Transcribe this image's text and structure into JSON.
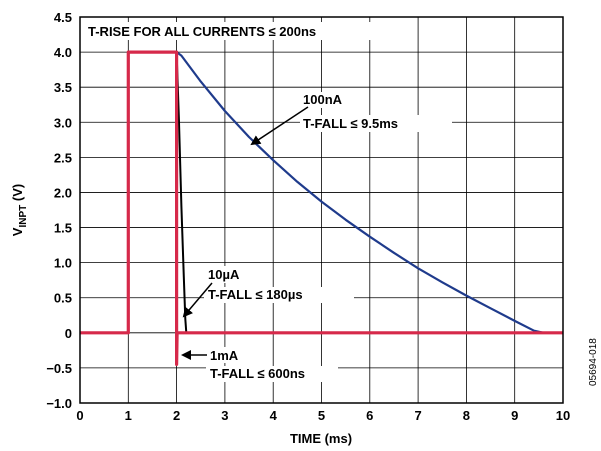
{
  "chart_data": {
    "type": "line",
    "title": "",
    "xlabel": "TIME (ms)",
    "ylabel_main": "V",
    "ylabel_sub": "INPT",
    "ylabel_unit": " (V)",
    "xlim": [
      0,
      10
    ],
    "ylim": [
      -1.0,
      4.5
    ],
    "grid": true,
    "x_ticks": [
      "0",
      "1",
      "2",
      "3",
      "4",
      "5",
      "6",
      "7",
      "8",
      "9",
      "10"
    ],
    "y_ticks": [
      "4.5",
      "4.0",
      "3.5",
      "3.0",
      "2.5",
      "2.0",
      "1.5",
      "1.0",
      "0.5",
      "0",
      "−0.5",
      "−1.0"
    ],
    "series": [
      {
        "name": "100nA",
        "color": "#1f3b8c",
        "points": [
          [
            0,
            0
          ],
          [
            1,
            0
          ],
          [
            1,
            4
          ],
          [
            2,
            4
          ],
          [
            2.1,
            3.95
          ],
          [
            2.5,
            3.58
          ],
          [
            3,
            3.16
          ],
          [
            3.5,
            2.79
          ],
          [
            4,
            2.46
          ],
          [
            4.5,
            2.15
          ],
          [
            5,
            1.87
          ],
          [
            5.5,
            1.61
          ],
          [
            6,
            1.37
          ],
          [
            6.5,
            1.14
          ],
          [
            7,
            0.92
          ],
          [
            7.5,
            0.72
          ],
          [
            8,
            0.53
          ],
          [
            8.5,
            0.35
          ],
          [
            9,
            0.17
          ],
          [
            9.4,
            0.03
          ],
          [
            9.6,
            0
          ],
          [
            10,
            0
          ]
        ]
      },
      {
        "name": "10µA",
        "color": "#000000",
        "points": [
          [
            0,
            0
          ],
          [
            1,
            0
          ],
          [
            1,
            4
          ],
          [
            2,
            4
          ],
          [
            2.05,
            3.0
          ],
          [
            2.1,
            1.8
          ],
          [
            2.15,
            0.8
          ],
          [
            2.18,
            0.2
          ],
          [
            2.2,
            0
          ],
          [
            10,
            0
          ]
        ]
      },
      {
        "name": "1mA",
        "color": "#d6294a",
        "points": [
          [
            0,
            0
          ],
          [
            1,
            0
          ],
          [
            1,
            4
          ],
          [
            2,
            4
          ],
          [
            2,
            -0.45
          ],
          [
            2.01,
            0
          ],
          [
            10,
            0
          ]
        ]
      }
    ],
    "annotations": [
      {
        "id": "rise",
        "text": "T-RISE FOR ALL CURRENTS ≤ 200ns"
      },
      {
        "id": "a100nA_1",
        "text": "100nA"
      },
      {
        "id": "a100nA_2",
        "text": "T-FALL ≤ 9.5ms"
      },
      {
        "id": "a10uA_1",
        "text": "10µA"
      },
      {
        "id": "a10uA_2",
        "text": "T-FALL ≤ 180µs"
      },
      {
        "id": "a1mA_1",
        "text": "1mA"
      },
      {
        "id": "a1mA_2",
        "text": "T-FALL ≤ 600ns"
      }
    ]
  },
  "figure_id": "05694-018"
}
